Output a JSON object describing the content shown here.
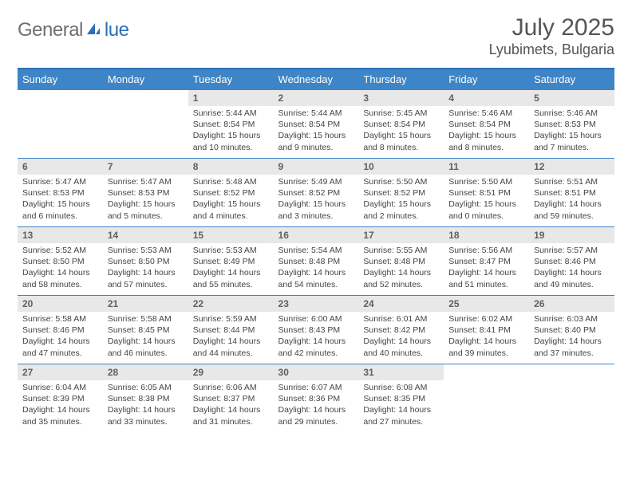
{
  "logo": {
    "text_gray": "General",
    "text_blue": "lue",
    "icon_color": "#2c6fb5"
  },
  "header": {
    "month_title": "July 2025",
    "location": "Lyubimets, Bulgaria"
  },
  "colors": {
    "header_bg": "#3d85c6",
    "border": "#2c6fb5",
    "daynum_bg": "#e8e8e8",
    "text_gray": "#6f6f6f",
    "text_blue": "#2c6fb5"
  },
  "weekdays": [
    "Sunday",
    "Monday",
    "Tuesday",
    "Wednesday",
    "Thursday",
    "Friday",
    "Saturday"
  ],
  "days": {
    "d1": {
      "num": "1",
      "l1": "Sunrise: 5:44 AM",
      "l2": "Sunset: 8:54 PM",
      "l3": "Daylight: 15 hours",
      "l4": "and 10 minutes."
    },
    "d2": {
      "num": "2",
      "l1": "Sunrise: 5:44 AM",
      "l2": "Sunset: 8:54 PM",
      "l3": "Daylight: 15 hours",
      "l4": "and 9 minutes."
    },
    "d3": {
      "num": "3",
      "l1": "Sunrise: 5:45 AM",
      "l2": "Sunset: 8:54 PM",
      "l3": "Daylight: 15 hours",
      "l4": "and 8 minutes."
    },
    "d4": {
      "num": "4",
      "l1": "Sunrise: 5:46 AM",
      "l2": "Sunset: 8:54 PM",
      "l3": "Daylight: 15 hours",
      "l4": "and 8 minutes."
    },
    "d5": {
      "num": "5",
      "l1": "Sunrise: 5:46 AM",
      "l2": "Sunset: 8:53 PM",
      "l3": "Daylight: 15 hours",
      "l4": "and 7 minutes."
    },
    "d6": {
      "num": "6",
      "l1": "Sunrise: 5:47 AM",
      "l2": "Sunset: 8:53 PM",
      "l3": "Daylight: 15 hours",
      "l4": "and 6 minutes."
    },
    "d7": {
      "num": "7",
      "l1": "Sunrise: 5:47 AM",
      "l2": "Sunset: 8:53 PM",
      "l3": "Daylight: 15 hours",
      "l4": "and 5 minutes."
    },
    "d8": {
      "num": "8",
      "l1": "Sunrise: 5:48 AM",
      "l2": "Sunset: 8:52 PM",
      "l3": "Daylight: 15 hours",
      "l4": "and 4 minutes."
    },
    "d9": {
      "num": "9",
      "l1": "Sunrise: 5:49 AM",
      "l2": "Sunset: 8:52 PM",
      "l3": "Daylight: 15 hours",
      "l4": "and 3 minutes."
    },
    "d10": {
      "num": "10",
      "l1": "Sunrise: 5:50 AM",
      "l2": "Sunset: 8:52 PM",
      "l3": "Daylight: 15 hours",
      "l4": "and 2 minutes."
    },
    "d11": {
      "num": "11",
      "l1": "Sunrise: 5:50 AM",
      "l2": "Sunset: 8:51 PM",
      "l3": "Daylight: 15 hours",
      "l4": "and 0 minutes."
    },
    "d12": {
      "num": "12",
      "l1": "Sunrise: 5:51 AM",
      "l2": "Sunset: 8:51 PM",
      "l3": "Daylight: 14 hours",
      "l4": "and 59 minutes."
    },
    "d13": {
      "num": "13",
      "l1": "Sunrise: 5:52 AM",
      "l2": "Sunset: 8:50 PM",
      "l3": "Daylight: 14 hours",
      "l4": "and 58 minutes."
    },
    "d14": {
      "num": "14",
      "l1": "Sunrise: 5:53 AM",
      "l2": "Sunset: 8:50 PM",
      "l3": "Daylight: 14 hours",
      "l4": "and 57 minutes."
    },
    "d15": {
      "num": "15",
      "l1": "Sunrise: 5:53 AM",
      "l2": "Sunset: 8:49 PM",
      "l3": "Daylight: 14 hours",
      "l4": "and 55 minutes."
    },
    "d16": {
      "num": "16",
      "l1": "Sunrise: 5:54 AM",
      "l2": "Sunset: 8:48 PM",
      "l3": "Daylight: 14 hours",
      "l4": "and 54 minutes."
    },
    "d17": {
      "num": "17",
      "l1": "Sunrise: 5:55 AM",
      "l2": "Sunset: 8:48 PM",
      "l3": "Daylight: 14 hours",
      "l4": "and 52 minutes."
    },
    "d18": {
      "num": "18",
      "l1": "Sunrise: 5:56 AM",
      "l2": "Sunset: 8:47 PM",
      "l3": "Daylight: 14 hours",
      "l4": "and 51 minutes."
    },
    "d19": {
      "num": "19",
      "l1": "Sunrise: 5:57 AM",
      "l2": "Sunset: 8:46 PM",
      "l3": "Daylight: 14 hours",
      "l4": "and 49 minutes."
    },
    "d20": {
      "num": "20",
      "l1": "Sunrise: 5:58 AM",
      "l2": "Sunset: 8:46 PM",
      "l3": "Daylight: 14 hours",
      "l4": "and 47 minutes."
    },
    "d21": {
      "num": "21",
      "l1": "Sunrise: 5:58 AM",
      "l2": "Sunset: 8:45 PM",
      "l3": "Daylight: 14 hours",
      "l4": "and 46 minutes."
    },
    "d22": {
      "num": "22",
      "l1": "Sunrise: 5:59 AM",
      "l2": "Sunset: 8:44 PM",
      "l3": "Daylight: 14 hours",
      "l4": "and 44 minutes."
    },
    "d23": {
      "num": "23",
      "l1": "Sunrise: 6:00 AM",
      "l2": "Sunset: 8:43 PM",
      "l3": "Daylight: 14 hours",
      "l4": "and 42 minutes."
    },
    "d24": {
      "num": "24",
      "l1": "Sunrise: 6:01 AM",
      "l2": "Sunset: 8:42 PM",
      "l3": "Daylight: 14 hours",
      "l4": "and 40 minutes."
    },
    "d25": {
      "num": "25",
      "l1": "Sunrise: 6:02 AM",
      "l2": "Sunset: 8:41 PM",
      "l3": "Daylight: 14 hours",
      "l4": "and 39 minutes."
    },
    "d26": {
      "num": "26",
      "l1": "Sunrise: 6:03 AM",
      "l2": "Sunset: 8:40 PM",
      "l3": "Daylight: 14 hours",
      "l4": "and 37 minutes."
    },
    "d27": {
      "num": "27",
      "l1": "Sunrise: 6:04 AM",
      "l2": "Sunset: 8:39 PM",
      "l3": "Daylight: 14 hours",
      "l4": "and 35 minutes."
    },
    "d28": {
      "num": "28",
      "l1": "Sunrise: 6:05 AM",
      "l2": "Sunset: 8:38 PM",
      "l3": "Daylight: 14 hours",
      "l4": "and 33 minutes."
    },
    "d29": {
      "num": "29",
      "l1": "Sunrise: 6:06 AM",
      "l2": "Sunset: 8:37 PM",
      "l3": "Daylight: 14 hours",
      "l4": "and 31 minutes."
    },
    "d30": {
      "num": "30",
      "l1": "Sunrise: 6:07 AM",
      "l2": "Sunset: 8:36 PM",
      "l3": "Daylight: 14 hours",
      "l4": "and 29 minutes."
    },
    "d31": {
      "num": "31",
      "l1": "Sunrise: 6:08 AM",
      "l2": "Sunset: 8:35 PM",
      "l3": "Daylight: 14 hours",
      "l4": "and 27 minutes."
    }
  },
  "grid": [
    [
      null,
      null,
      "d1",
      "d2",
      "d3",
      "d4",
      "d5"
    ],
    [
      "d6",
      "d7",
      "d8",
      "d9",
      "d10",
      "d11",
      "d12"
    ],
    [
      "d13",
      "d14",
      "d15",
      "d16",
      "d17",
      "d18",
      "d19"
    ],
    [
      "d20",
      "d21",
      "d22",
      "d23",
      "d24",
      "d25",
      "d26"
    ],
    [
      "d27",
      "d28",
      "d29",
      "d30",
      "d31",
      null,
      null
    ]
  ]
}
